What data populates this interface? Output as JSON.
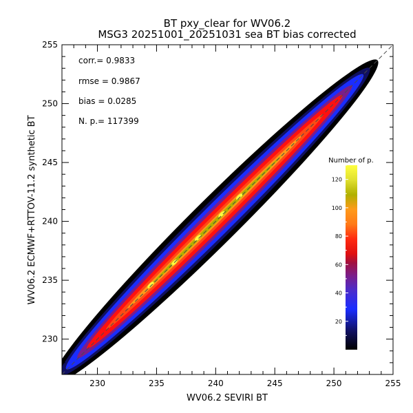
{
  "chart_data": {
    "type": "heatmap",
    "title": "BT pxy_clear for WV06.2",
    "subtitle": "MSG3 20251001_20251031 sea BT bias corrected",
    "xlabel": "WV06.2 SEVIRI BT",
    "ylabel": "WV06.2 ECMWF+RTTOV-11.2 synthetic BT",
    "xlim": [
      227,
      255
    ],
    "ylim": [
      227,
      255
    ],
    "x_ticks": [
      "230",
      "235",
      "240",
      "245",
      "250",
      "255"
    ],
    "y_ticks": [
      "230",
      "235",
      "240",
      "245",
      "250",
      "255"
    ],
    "stats": {
      "corr": "corr.= 0.9833",
      "rmse": "rmse = 0.9867",
      "bias": "bias = 0.0285",
      "npts": "N. p.=  117399"
    },
    "density_ridge": {
      "x": [
        227,
        230,
        233,
        236,
        239,
        242,
        245,
        248,
        251,
        254
      ],
      "y": [
        227.1,
        230.0,
        233.0,
        236.0,
        239.1,
        242.0,
        245.0,
        247.9,
        250.9,
        254.0
      ],
      "peak_count": [
        2,
        25,
        70,
        95,
        115,
        120,
        90,
        50,
        12,
        3
      ]
    },
    "colorbar": {
      "title": "Number of p.",
      "ticks": [
        "20",
        "40",
        "60",
        "80",
        "100",
        "120"
      ],
      "range": [
        0,
        130
      ]
    },
    "colors": {
      "low": "#000000",
      "blue": "#1a2dff",
      "purple": "#7a1e8a",
      "red": "#ff1010",
      "orange": "#ff9a1a",
      "olive": "#b0b000",
      "yellow": "#ffff40",
      "one_to_one_line": "#4a4a4a"
    }
  }
}
